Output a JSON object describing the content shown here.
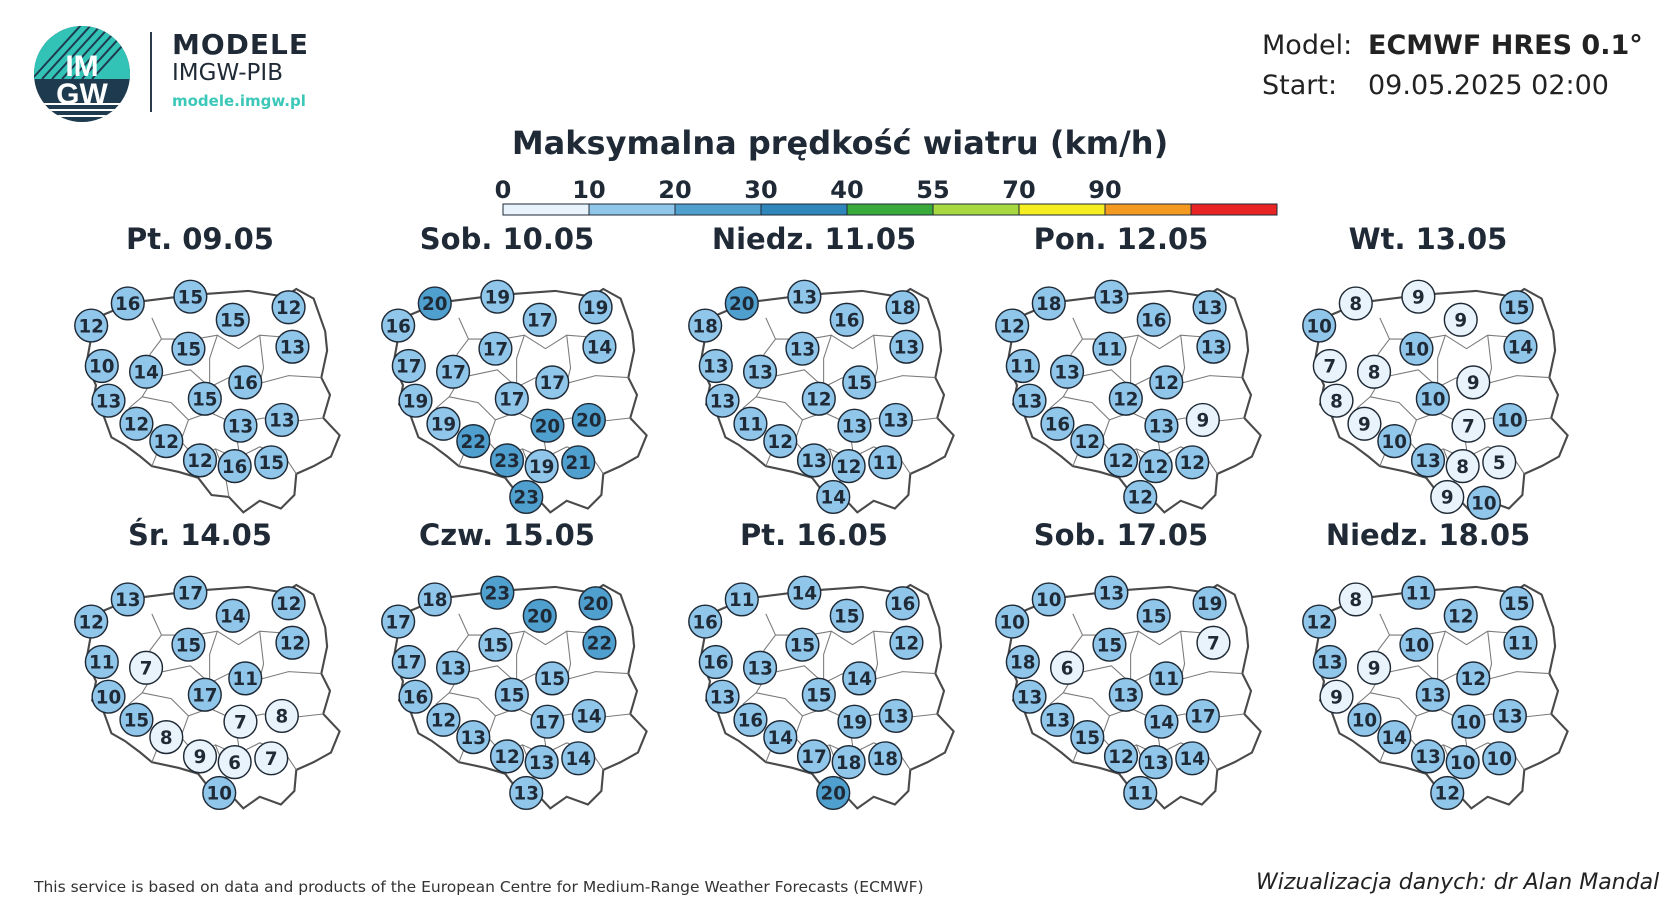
{
  "header": {
    "logo_text_top": "IM",
    "logo_text_bottom": "GW",
    "brand_title": "MODELE",
    "brand_sub": "IMGW-PIB",
    "brand_url": "modele.imgw.pl",
    "model_label": "Model:",
    "model_value": "ECMWF HRES 0.1°",
    "start_label": "Start:",
    "start_value": "09.05.2025 02:00"
  },
  "title": "Maksymalna prędkość wiatru (km/h)",
  "legend": {
    "ticks": [
      "0",
      "10",
      "20",
      "30",
      "40",
      "55",
      "70",
      "90"
    ],
    "colors": [
      "#e9f3fb",
      "#8fc6ea",
      "#4fa0cf",
      "#2f86bb",
      "#3aaa3a",
      "#a8d840",
      "#f5ee20",
      "#f59a20",
      "#e82424"
    ]
  },
  "panels": [
    {
      "title": "Pt. 09.05",
      "values": [
        16,
        15,
        12,
        12,
        15,
        13,
        10,
        15,
        14,
        16,
        13,
        15,
        13,
        12,
        13,
        12,
        12,
        16,
        15
      ]
    },
    {
      "title": "Sob. 10.05",
      "values": [
        20,
        19,
        16,
        19,
        17,
        14,
        17,
        17,
        17,
        17,
        19,
        17,
        20,
        19,
        20,
        22,
        23,
        19,
        21,
        23
      ]
    },
    {
      "title": "Niedz. 11.05",
      "values": [
        20,
        13,
        18,
        18,
        16,
        13,
        13,
        13,
        13,
        15,
        13,
        12,
        13,
        11,
        13,
        12,
        13,
        12,
        11,
        14
      ]
    },
    {
      "title": "Pon. 12.05",
      "values": [
        18,
        13,
        12,
        13,
        16,
        13,
        11,
        11,
        13,
        12,
        13,
        12,
        9,
        16,
        13,
        12,
        12,
        12,
        12,
        12
      ]
    },
    {
      "title": "Wt. 13.05",
      "values": [
        8,
        9,
        10,
        15,
        9,
        14,
        7,
        10,
        8,
        9,
        8,
        10,
        10,
        9,
        7,
        10,
        13,
        8,
        5,
        9,
        10
      ]
    },
    {
      "title": "Śr. 14.05",
      "values": [
        13,
        17,
        12,
        12,
        14,
        12,
        11,
        15,
        7,
        11,
        10,
        17,
        8,
        15,
        7,
        8,
        9,
        6,
        7,
        10
      ]
    },
    {
      "title": "Czw. 15.05",
      "values": [
        18,
        23,
        17,
        20,
        20,
        22,
        17,
        15,
        13,
        15,
        16,
        15,
        14,
        12,
        17,
        13,
        12,
        13,
        14,
        13
      ]
    },
    {
      "title": "Pt. 16.05",
      "values": [
        11,
        14,
        16,
        16,
        15,
        12,
        16,
        15,
        13,
        14,
        13,
        15,
        13,
        16,
        19,
        14,
        17,
        18,
        18,
        20
      ]
    },
    {
      "title": "Sob. 17.05",
      "values": [
        10,
        13,
        10,
        19,
        15,
        7,
        18,
        15,
        6,
        11,
        13,
        13,
        17,
        13,
        14,
        15,
        12,
        13,
        14,
        11
      ]
    },
    {
      "title": "Niedz. 18.05",
      "values": [
        8,
        11,
        12,
        15,
        12,
        11,
        13,
        10,
        9,
        12,
        9,
        13,
        13,
        10,
        10,
        14,
        13,
        10,
        10,
        12
      ]
    }
  ],
  "footer": {
    "left": "This service is based on data and products of the European Centre for Medium-Range Weather Forecasts (ECMWF)",
    "right": "Wizualizacja danych: dr Alan Mandal"
  }
}
